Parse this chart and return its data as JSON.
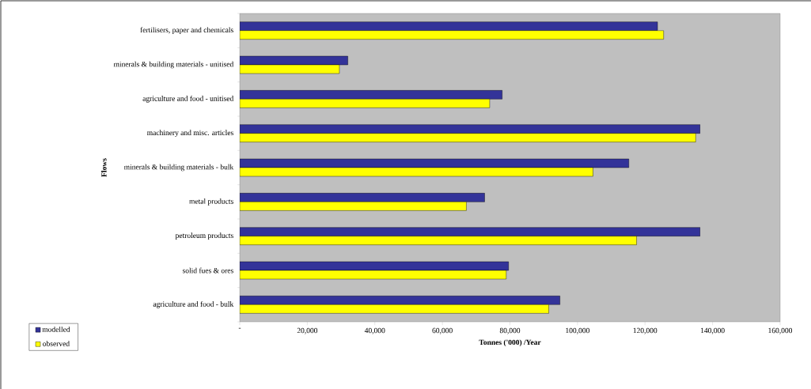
{
  "chart_data": {
    "type": "bar",
    "orientation": "horizontal",
    "xlabel": "Tonnes ('000) /Year",
    "ylabel": "Flows",
    "categories": [
      "fertilisers, paper and chemicals",
      "minerals & building materials - unitised",
      "agriculture and food - unitised",
      "machinery and misc. articles",
      "minerals & building materials - bulk",
      "metal products",
      "petroleum products",
      "solid fues & ores",
      "agriculture and food - bulk"
    ],
    "series": [
      {
        "name": "modelled",
        "color": "#333399",
        "values": [
          123700,
          32000,
          77700,
          136300,
          115200,
          72500,
          136300,
          79600,
          94800
        ]
      },
      {
        "name": "observed",
        "color": "#ffff00",
        "values": [
          125500,
          29500,
          74000,
          135000,
          104600,
          67100,
          117500,
          78900,
          91500
        ]
      }
    ],
    "xlim": [
      0,
      160000
    ],
    "xticks": [
      {
        "value": 0,
        "label": "-"
      },
      {
        "value": 20000,
        "label": "20,000"
      },
      {
        "value": 40000,
        "label": "40,000"
      },
      {
        "value": 60000,
        "label": "60,000"
      },
      {
        "value": 80000,
        "label": "80,000"
      },
      {
        "value": 100000,
        "label": "100,000"
      },
      {
        "value": 120000,
        "label": "120,000"
      },
      {
        "value": 140000,
        "label": "140,000"
      },
      {
        "value": 160000,
        "label": "160,000"
      }
    ],
    "legend": "bottom left"
  }
}
